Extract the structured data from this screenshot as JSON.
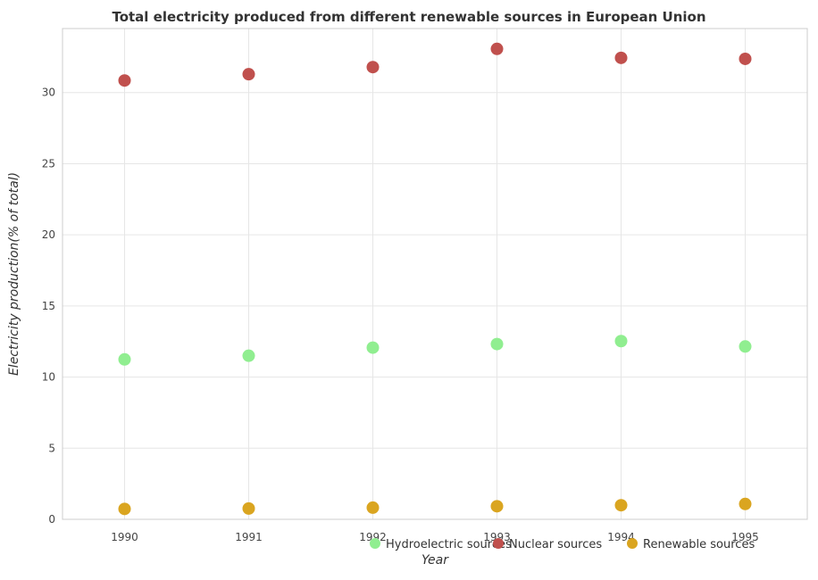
{
  "chart_data": {
    "type": "scatter",
    "title": "Total electricity produced from different renewable sources in European Union",
    "xlabel": "Year",
    "ylabel": "Electricity production(% of total)",
    "categories": [
      "1990",
      "1991",
      "1992",
      "1993",
      "1994",
      "1995"
    ],
    "yticks": [
      "0",
      "5",
      "10",
      "15",
      "20",
      "25",
      "30"
    ],
    "ylim": [
      0,
      34.5
    ],
    "grid": true,
    "legend_position": "bottom-right",
    "series": [
      {
        "name": "Hydroelectric sources",
        "color": "#90ee90",
        "values": [
          11.24,
          11.5,
          12.07,
          12.32,
          12.53,
          12.15
        ]
      },
      {
        "name": "Nuclear sources",
        "color": "#c0504d",
        "values": [
          30.85,
          31.29,
          31.79,
          33.07,
          32.44,
          32.37
        ]
      },
      {
        "name": "Renewable sources",
        "color": "#daa520",
        "values": [
          0.73,
          0.76,
          0.82,
          0.92,
          0.99,
          1.08
        ]
      }
    ]
  }
}
